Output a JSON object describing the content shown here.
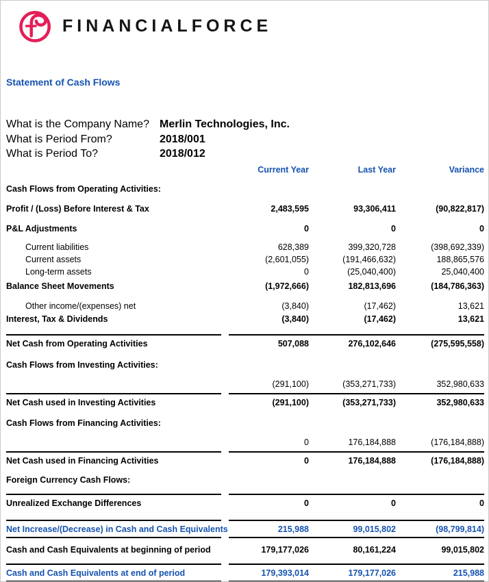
{
  "colors": {
    "brand_pink": "#e41e57",
    "accent_blue": "#1452b0",
    "text_black": "#000000",
    "page_border_gray": "#c9c9c9"
  },
  "brand": {
    "logo_icon": "financialforce-f-ring-icon",
    "logo_text": "FINANCIALFORCE"
  },
  "title": "Statement of Cash Flows",
  "params": [
    {
      "question": "What is the Company Name?",
      "answer": "Merlin Technologies, Inc."
    },
    {
      "question": "What is Period From?",
      "answer": "2018/001"
    },
    {
      "question": "What is Period To?",
      "answer": "2018/012"
    }
  ],
  "table": {
    "columns": [
      "Current Year",
      "Last Year",
      "Variance"
    ],
    "rows": [
      {
        "name": "section-operating-activities",
        "label": "Cash Flows from Operating Activities:",
        "bold": true,
        "values": null,
        "mt": 10
      },
      {
        "name": "row-profit-before-interest-tax",
        "label": "Profit / (Loss) Before Interest & Tax",
        "bold": true,
        "values": [
          "2,483,595",
          "93,306,411",
          "(90,822,817)"
        ],
        "mt": 11
      },
      {
        "name": "row-pl-adjustments",
        "label": "P&L Adjustments",
        "bold": true,
        "values": [
          "0",
          "0",
          "0"
        ],
        "mt": 11
      },
      {
        "name": "row-current-liabilities",
        "label": "Current liabilities",
        "indent": true,
        "values": [
          "628,389",
          "399,320,728",
          "(398,692,339)"
        ],
        "mt": 9
      },
      {
        "name": "row-current-assets",
        "label": "Current assets",
        "indent": true,
        "values": [
          "(2,601,055)",
          "(191,466,632)",
          "188,865,576"
        ],
        "mt": 0
      },
      {
        "name": "row-long-term-assets",
        "label": "Long-term assets",
        "indent": true,
        "values": [
          "0",
          "(25,040,400)",
          "25,040,400"
        ],
        "mt": 0
      },
      {
        "name": "row-balance-sheet-movements",
        "label": "Balance Sheet Movements",
        "bold": true,
        "values": [
          "(1,972,666)",
          "182,813,696",
          "(184,786,363)"
        ],
        "mt": 3
      },
      {
        "name": "row-other-income-expenses-net",
        "label": "Other income/(expenses) net",
        "indent": true,
        "values": [
          "(3,840)",
          "(17,462)",
          "13,621"
        ],
        "mt": 11
      },
      {
        "name": "row-interest-tax-dividends",
        "label": "Interest, Tax & Dividends",
        "bold": true,
        "values": [
          "(3,840)",
          "(17,462)",
          "13,621"
        ],
        "mt": 1
      },
      {
        "name": "row-net-cash-operating",
        "label": "Net Cash from Operating Activities",
        "bold": true,
        "lineAbove": true,
        "values": [
          "507,088",
          "276,102,646",
          "(275,595,558)"
        ],
        "mt": 13
      },
      {
        "name": "section-investing-activities",
        "label": "Cash Flows from Investing Activities:",
        "bold": true,
        "values": null,
        "mt": 13
      },
      {
        "name": "row-investing-detail",
        "label": "",
        "values": [
          "(291,100)",
          "(353,271,733)",
          "352,980,633"
        ],
        "mt": 10
      },
      {
        "name": "row-net-cash-investing",
        "label": "Net Cash used in Investing Activities",
        "bold": true,
        "lineAbove": true,
        "values": [
          "(291,100)",
          "(353,271,733)",
          "352,980,633"
        ],
        "mt": 4
      },
      {
        "name": "section-financing-activities",
        "label": "Cash Flows from Financing Activities:",
        "bold": true,
        "values": null,
        "mt": 12
      },
      {
        "name": "row-financing-detail",
        "label": "",
        "values": [
          "0",
          "176,184,888",
          "(176,184,888)"
        ],
        "mt": 10
      },
      {
        "name": "row-net-cash-financing",
        "label": "Net Cash used in Financing Activities",
        "bold": true,
        "lineAbove": true,
        "values": [
          "0",
          "176,184,888",
          "(176,184,888)"
        ],
        "mt": 4
      },
      {
        "name": "section-foreign-currency",
        "label": "Foreign Currency Cash Flows:",
        "bold": true,
        "values": null,
        "mt": 10
      },
      {
        "name": "row-unrealized-exchange-differences",
        "label": "Unrealized Exchange Differences",
        "bold": true,
        "lineAbove": true,
        "values": [
          "0",
          "0",
          "0"
        ],
        "mt": 11
      },
      {
        "name": "row-net-increase-decrease-cash",
        "label": "Net Increase/(Decrease) in Cash and Cash Equivalents",
        "bold": true,
        "blue": true,
        "lineAbove": true,
        "lineBelow": true,
        "values": [
          "215,988",
          "99,015,802",
          "(98,799,814)"
        ],
        "mt": 15
      },
      {
        "name": "row-cash-beginning-of-period",
        "label": "Cash and Cash Equivalents at beginning of period",
        "bold": true,
        "values": [
          "179,177,026",
          "80,161,224",
          "99,015,802"
        ],
        "mt": 8
      },
      {
        "name": "row-cash-end-of-period",
        "label": "Cash and Cash Equivalents at end of period",
        "bold": true,
        "blue": true,
        "lineAbove": true,
        "lineBelow": true,
        "values": [
          "179,393,014",
          "179,177,026",
          "215,988"
        ],
        "mt": 11
      }
    ]
  }
}
